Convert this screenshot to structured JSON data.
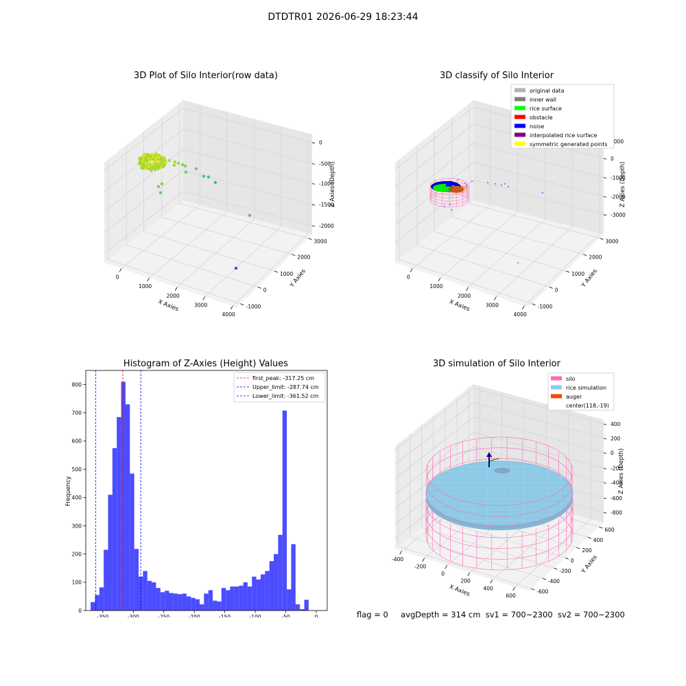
{
  "figure": {
    "title": "DTDTR01 2026-06-29 18:23:44",
    "status": {
      "flag": "flag = 0",
      "avg_depth": "avgDepth = 314 cm",
      "sv1": "sv1 = 700~2300",
      "sv2": "sv2 = 700~2300"
    }
  },
  "chart_data": [
    {
      "type": "scatter",
      "title": "3D Plot of Silo Interior(row data)",
      "xlabel": "X Axies",
      "ylabel": "Y Axies",
      "zlabel": "Z Axies (Depth)",
      "x_ticks": [
        "0",
        "1000",
        "2000",
        "3000",
        "4000"
      ],
      "y_ticks": [
        "-1000",
        "0",
        "1000",
        "2000",
        "3000"
      ],
      "z_ticks": [
        "0",
        "-500",
        "-1000",
        "-1500",
        "-2000"
      ],
      "grid": true,
      "colormap": "viridis-like by depth (yellow = shallow, blue = deep)",
      "points_xyz": [
        [
          280,
          80,
          -320
        ],
        [
          320,
          110,
          -330
        ],
        [
          360,
          140,
          -340
        ],
        [
          420,
          200,
          -360
        ],
        [
          520,
          260,
          -380
        ],
        [
          640,
          300,
          -420
        ],
        [
          780,
          340,
          -430
        ],
        [
          950,
          380,
          -470
        ],
        [
          1300,
          500,
          -560
        ],
        [
          1500,
          560,
          -600
        ],
        [
          1700,
          620,
          -650
        ],
        [
          300,
          500,
          -700
        ],
        [
          260,
          420,
          -640
        ],
        [
          2700,
          900,
          -1500
        ],
        [
          3300,
          1000,
          -2050
        ]
      ]
    },
    {
      "type": "scatter",
      "title": "3D classify of Silo Interior",
      "xlabel": "X Axies",
      "ylabel": "Y Axies",
      "zlabel": "Z Axies (Depth)",
      "x_ticks": [
        "0",
        "1000",
        "2000",
        "3000",
        "4000"
      ],
      "y_ticks": [
        "-1000",
        "0",
        "1000",
        "2000",
        "3000"
      ],
      "z_ticks": [
        "1000",
        "0",
        "-1000",
        "-2000",
        "-3000"
      ],
      "grid": true,
      "legend_position": "top-right",
      "legend": [
        {
          "label": "original data",
          "color": "#b3b3b3"
        },
        {
          "label": "inner wall",
          "color": "#808080"
        },
        {
          "label": "rice surface",
          "color": "#00ff00"
        },
        {
          "label": "obstacle",
          "color": "#ff0000"
        },
        {
          "label": "noise",
          "color": "#0000ff"
        },
        {
          "label": "interpolated rice surface",
          "color": "#800080"
        },
        {
          "label": "symmetric generated points",
          "color": "#ffff00"
        }
      ]
    },
    {
      "type": "bar",
      "title": "Histogram of Z-Axies (Height) Values",
      "xlabel": "Depth (cm)",
      "ylabel": "Frequency",
      "xlim": [
        -378,
        18
      ],
      "ylim": [
        0,
        850
      ],
      "x_ticks": [
        -350,
        -300,
        -250,
        -200,
        -150,
        -100,
        -50,
        0
      ],
      "y_ticks": [
        0,
        100,
        200,
        300,
        400,
        500,
        600,
        700,
        800
      ],
      "bar_color": "#4c4cff",
      "bins_start": -370,
      "bin_width": 7.15,
      "values": [
        30,
        55,
        82,
        215,
        410,
        575,
        685,
        810,
        730,
        485,
        218,
        120,
        140,
        105,
        100,
        80,
        65,
        70,
        62,
        60,
        58,
        60,
        50,
        45,
        40,
        22,
        60,
        72,
        35,
        32,
        80,
        72,
        85,
        85,
        88,
        100,
        85,
        120,
        110,
        128,
        140,
        175,
        200,
        268,
        708,
        75,
        235,
        22,
        5,
        38
      ],
      "vlines": [
        {
          "label": "first_peak: -317.25 cm",
          "x": -317.25,
          "color": "#ff0000"
        },
        {
          "label": "Upper_limit: -287.74 cm",
          "x": -287.74,
          "color": "#0000ff"
        },
        {
          "label": "Lower_limit: -361.52 cm",
          "x": -361.52,
          "color": "#0000ff"
        }
      ],
      "legend_position": "top-right"
    },
    {
      "type": "surface",
      "title": "3D simulation of Silo Interior",
      "xlabel": "X Axies",
      "ylabel": "Y Axies",
      "zlabel": "Z Axies (Depth)",
      "x_ticks": [
        "-400",
        "-200",
        "0",
        "200",
        "400",
        "600"
      ],
      "y_ticks": [
        "-600",
        "-400",
        "-200",
        "0",
        "200",
        "400",
        "600"
      ],
      "z_ticks": [
        "400",
        "200",
        "0",
        "-200",
        "-400",
        "-600",
        "-800"
      ],
      "grid": true,
      "legend_position": "top-right",
      "legend": [
        {
          "label": "silo",
          "color": "#ff69b4"
        },
        {
          "label": "rice simulation",
          "color": "#87ceeb"
        },
        {
          "label": "auger",
          "color": "#ff4500"
        },
        {
          "label": "center(118,-19)",
          "color": ""
        }
      ]
    }
  ]
}
